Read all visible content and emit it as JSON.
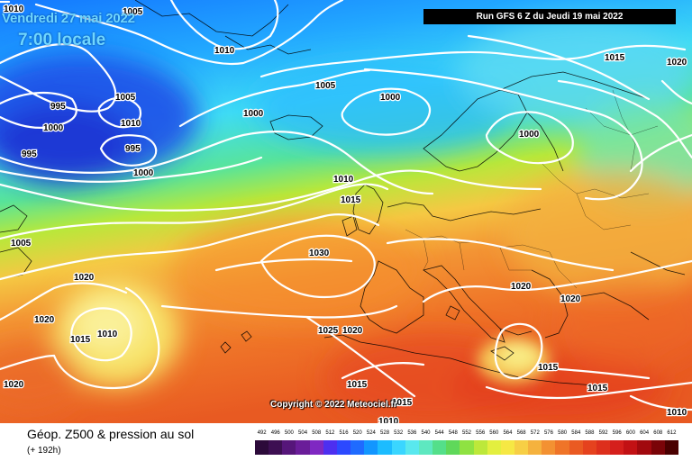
{
  "header": {
    "date_line": "Vendredi 27 mai 2022",
    "time_line": "7:00 locale",
    "run_info": "Run GFS 6 Z du Jeudi 19 mai 2022"
  },
  "copyright": "Copyright © 2022 Meteociel.fr",
  "footer": {
    "title": "Géop. Z500 & pression au sol",
    "subtitle": "(+ 192h)"
  },
  "scale": {
    "labels": [
      "492",
      "496",
      "500",
      "504",
      "508",
      "512",
      "516",
      "520",
      "524",
      "528",
      "532",
      "536",
      "540",
      "544",
      "548",
      "552",
      "556",
      "560",
      "564",
      "568",
      "572",
      "576",
      "580",
      "584",
      "588",
      "592",
      "596",
      "600",
      "604",
      "608",
      "612"
    ],
    "colors": [
      "#2c0a3a",
      "#3d0f52",
      "#56167a",
      "#6a1d99",
      "#7f28c2",
      "#4d2ff0",
      "#2c49ff",
      "#1f6bff",
      "#1296ff",
      "#1cbcff",
      "#3ad6ff",
      "#59e8ee",
      "#5ee8c0",
      "#54df8a",
      "#5fd85a",
      "#8fe242",
      "#bde83a",
      "#e3ef3f",
      "#f6e844",
      "#f7cf45",
      "#f5b23e",
      "#f39132",
      "#ef7428",
      "#ea5a22",
      "#e5421e",
      "#dd2f1c",
      "#d51f1c",
      "#c21114",
      "#a1090e",
      "#7a0408",
      "#4a0000"
    ]
  },
  "isobars": [
    {
      "label": "1010",
      "tag": "p1010-tl"
    },
    {
      "label": "1005",
      "tag": "p1005-top"
    },
    {
      "label": "1010",
      "tag": "p1010-green"
    },
    {
      "label": "995",
      "tag": "p995-a"
    },
    {
      "label": "1005",
      "tag": "p1005-b"
    },
    {
      "label": "1010",
      "tag": "p1010-c"
    },
    {
      "label": "1000",
      "tag": "p1000-a"
    },
    {
      "label": "995",
      "tag": "p995-b"
    },
    {
      "label": "995",
      "tag": "p995-c"
    },
    {
      "label": "1000",
      "tag": "p1000-b"
    },
    {
      "label": "1000",
      "tag": "p1000-c"
    },
    {
      "label": "1005",
      "tag": "p1005-c"
    },
    {
      "label": "1000",
      "tag": "p1000-d"
    },
    {
      "label": "1000",
      "tag": "p1000-e"
    },
    {
      "label": "1015",
      "tag": "p1015-ne"
    },
    {
      "label": "1020",
      "tag": "p1020-ne"
    },
    {
      "label": "1010",
      "tag": "p1010-d"
    },
    {
      "label": "1015",
      "tag": "p1015-b"
    },
    {
      "label": "1005",
      "tag": "p1005-w"
    },
    {
      "label": "1030",
      "tag": "p1030"
    },
    {
      "label": "1020",
      "tag": "p1020-w"
    },
    {
      "label": "1020",
      "tag": "p1020-w2"
    },
    {
      "label": "1010",
      "tag": "p1010-low"
    },
    {
      "label": "1015",
      "tag": "p1015-w"
    },
    {
      "label": "1025",
      "tag": "p1025"
    },
    {
      "label": "1020",
      "tag": "p1020-ib"
    },
    {
      "label": "1020",
      "tag": "p1020-it"
    },
    {
      "label": "1020",
      "tag": "p1020-bk"
    },
    {
      "label": "1015",
      "tag": "p1015-med"
    },
    {
      "label": "1015",
      "tag": "p1015-af"
    },
    {
      "label": "1015",
      "tag": "p1015-gr"
    },
    {
      "label": "1015",
      "tag": "p1015-eg"
    },
    {
      "label": "1010",
      "tag": "p1010-se"
    },
    {
      "label": "1020",
      "tag": "p1020-sw"
    },
    {
      "label": "1010",
      "tag": "p1010-bot"
    }
  ]
}
